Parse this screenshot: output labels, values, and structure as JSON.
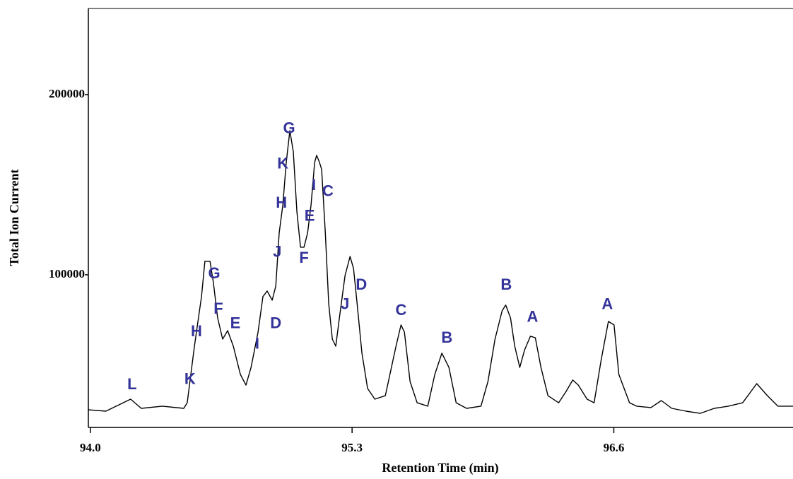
{
  "chart_data": {
    "type": "line",
    "x_label": "Retention Time (min)",
    "y_label": "Total Ion Current",
    "color": "#000000",
    "annotation_color": "#33339a",
    "xlim": [
      93.99,
      97.49
    ],
    "ylim": [
      15300,
      247800
    ],
    "xticks": [
      {
        "value": 94,
        "label": "94.0"
      },
      95.3,
      96.6
    ],
    "yticks": [
      100000,
      200000
    ],
    "x": [
      93.99,
      94.077,
      94.2,
      94.253,
      94.358,
      94.464,
      94.481,
      94.517,
      94.552,
      94.569,
      94.594,
      94.611,
      94.632,
      94.657,
      94.682,
      94.71,
      94.745,
      94.773,
      94.798,
      94.833,
      94.857,
      94.878,
      94.903,
      94.921,
      94.938,
      94.956,
      94.973,
      94.991,
      95.008,
      95.026,
      95.044,
      95.061,
      95.079,
      95.096,
      95.114,
      95.124,
      95.138,
      95.149,
      95.167,
      95.184,
      95.202,
      95.219,
      95.237,
      95.265,
      95.29,
      95.307,
      95.325,
      95.349,
      95.377,
      95.413,
      95.465,
      95.518,
      95.543,
      95.56,
      95.588,
      95.623,
      95.676,
      95.711,
      95.746,
      95.781,
      95.817,
      95.869,
      95.94,
      95.975,
      96.01,
      96.045,
      96.063,
      96.087,
      96.108,
      96.133,
      96.157,
      96.186,
      96.21,
      96.238,
      96.273,
      96.326,
      96.361,
      96.396,
      96.424,
      96.467,
      96.502,
      96.537,
      96.573,
      96.601,
      96.625,
      96.678,
      96.713,
      96.784,
      96.836,
      96.888,
      96.959,
      97.029,
      97.099,
      97.169,
      97.24,
      97.31,
      97.363,
      97.415,
      97.49
    ],
    "values": [
      25100,
      24300,
      31000,
      25900,
      27100,
      25900,
      29000,
      60400,
      87900,
      107500,
      107500,
      95700,
      76100,
      64300,
      69000,
      60400,
      44700,
      38800,
      48600,
      68200,
      87900,
      91000,
      85900,
      93700,
      123200,
      138800,
      162400,
      180000,
      168300,
      134900,
      115300,
      115300,
      123200,
      138800,
      162400,
      166300,
      162400,
      158500,
      123200,
      83900,
      64300,
      60400,
      76100,
      99600,
      110200,
      103500,
      83900,
      56500,
      36900,
      31000,
      32900,
      60400,
      72200,
      68200,
      40800,
      29000,
      27100,
      44700,
      56500,
      48600,
      29000,
      25900,
      27100,
      40800,
      64300,
      80000,
      83200,
      76100,
      60400,
      48600,
      58400,
      65900,
      65100,
      48600,
      32900,
      29000,
      34900,
      41600,
      38800,
      31000,
      29000,
      52600,
      74100,
      72200,
      44700,
      29000,
      27100,
      26300,
      30200,
      25900,
      24300,
      23100,
      25900,
      27100,
      29000,
      39600,
      32900,
      27100,
      27100
    ],
    "annotations": [
      {
        "text": "L",
        "x": 94.207,
        "y": 38800
      },
      {
        "text": "K",
        "x": 94.495,
        "y": 41600
      },
      {
        "text": "H",
        "x": 94.527,
        "y": 68200
      },
      {
        "text": "G",
        "x": 94.615,
        "y": 100400
      },
      {
        "text": "F",
        "x": 94.636,
        "y": 80800
      },
      {
        "text": "E",
        "x": 94.72,
        "y": 72600
      },
      {
        "text": "I",
        "x": 94.829,
        "y": 61200
      },
      {
        "text": "D",
        "x": 94.921,
        "y": 72600
      },
      {
        "text": "J",
        "x": 94.928,
        "y": 112200
      },
      {
        "text": "H",
        "x": 94.949,
        "y": 139600
      },
      {
        "text": "K",
        "x": 94.956,
        "y": 161200
      },
      {
        "text": "G",
        "x": 94.987,
        "y": 180800
      },
      {
        "text": "E",
        "x": 95.089,
        "y": 132200
      },
      {
        "text": "F",
        "x": 95.061,
        "y": 109000
      },
      {
        "text": "I",
        "x": 95.11,
        "y": 149400
      },
      {
        "text": "C",
        "x": 95.18,
        "y": 145900
      },
      {
        "text": "J",
        "x": 95.265,
        "y": 83200
      },
      {
        "text": "D",
        "x": 95.346,
        "y": 94100
      },
      {
        "text": "C",
        "x": 95.543,
        "y": 80000
      },
      {
        "text": "B",
        "x": 95.771,
        "y": 64700
      },
      {
        "text": "B",
        "x": 96.066,
        "y": 94100
      },
      {
        "text": "A",
        "x": 96.196,
        "y": 76100
      },
      {
        "text": "A",
        "x": 96.568,
        "y": 83200
      }
    ]
  }
}
